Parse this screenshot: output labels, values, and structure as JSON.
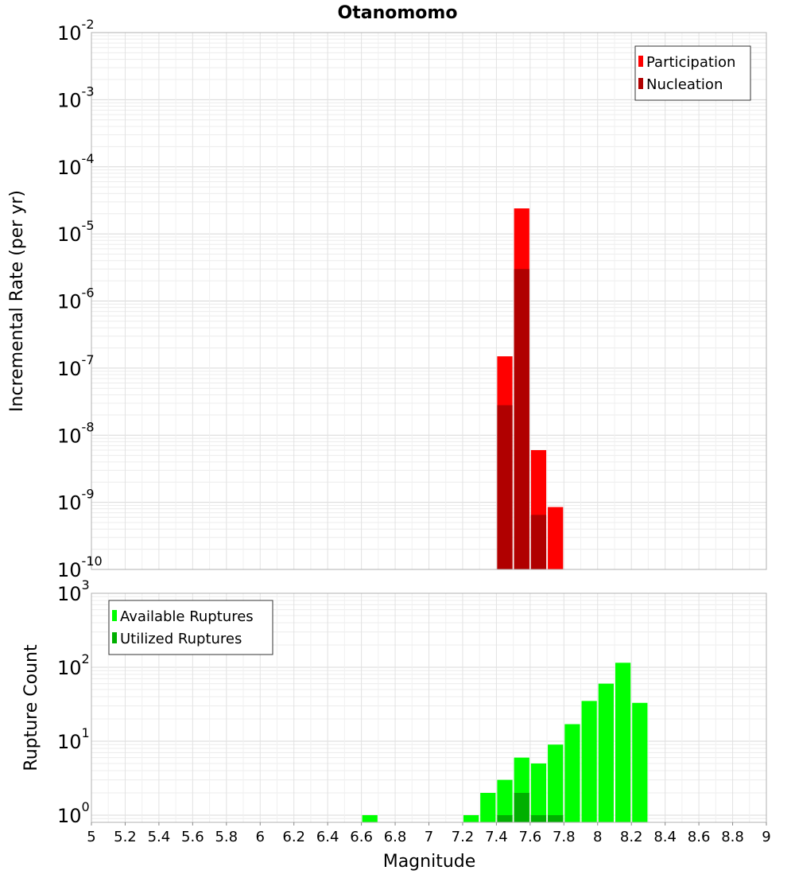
{
  "chart_data": {
    "title": "Otanomomo",
    "xlabel": "Magnitude",
    "xlim": [
      5,
      9
    ],
    "x_ticks": [
      "5",
      "5.2",
      "5.4",
      "5.6",
      "5.8",
      "6",
      "6.2",
      "6.4",
      "6.6",
      "6.8",
      "7",
      "7.2",
      "7.4",
      "7.6",
      "7.8",
      "8",
      "8.2",
      "8.4",
      "8.6",
      "8.8",
      "9"
    ],
    "bin_width": 0.1,
    "panels": [
      {
        "type": "bar",
        "ylabel": "Incremental Rate (per yr)",
        "yscale": "log",
        "ylim": [
          1e-10,
          0.01
        ],
        "y_tick_exponents": [
          "-10",
          "-9",
          "-8",
          "-7",
          "-6",
          "-5",
          "-4",
          "-3",
          "-2"
        ],
        "legend_position": "top-right",
        "series": [
          {
            "name": "Participation",
            "color": "#ff0000",
            "x": [
              7.45,
              7.55,
              7.65,
              7.75
            ],
            "values": [
              1.5e-07,
              2.4e-05,
              6e-09,
              8.5e-10
            ]
          },
          {
            "name": "Nucleation",
            "color": "#b00000",
            "x": [
              7.45,
              7.55,
              7.65
            ],
            "values": [
              2.8e-08,
              3e-06,
              6.5e-10
            ]
          }
        ]
      },
      {
        "type": "bar",
        "ylabel": "Rupture Count",
        "yscale": "log",
        "ylim": [
          0.8,
          1000
        ],
        "y_tick_exponents": [
          "0",
          "1",
          "2",
          "3"
        ],
        "legend_position": "top-left",
        "series": [
          {
            "name": "Available Ruptures",
            "color": "#00ff00",
            "x": [
              6.65,
              7.25,
              7.35,
              7.45,
              7.55,
              7.65,
              7.75,
              7.85,
              7.95,
              8.05,
              8.15,
              8.25
            ],
            "values": [
              1,
              1,
              2,
              3,
              6,
              5,
              9,
              17,
              35,
              60,
              115,
              33
            ]
          },
          {
            "name": "Utilized Ruptures",
            "color": "#00b000",
            "x": [
              7.45,
              7.55,
              7.65,
              7.75
            ],
            "values": [
              1,
              2,
              1,
              1
            ]
          }
        ]
      }
    ]
  }
}
